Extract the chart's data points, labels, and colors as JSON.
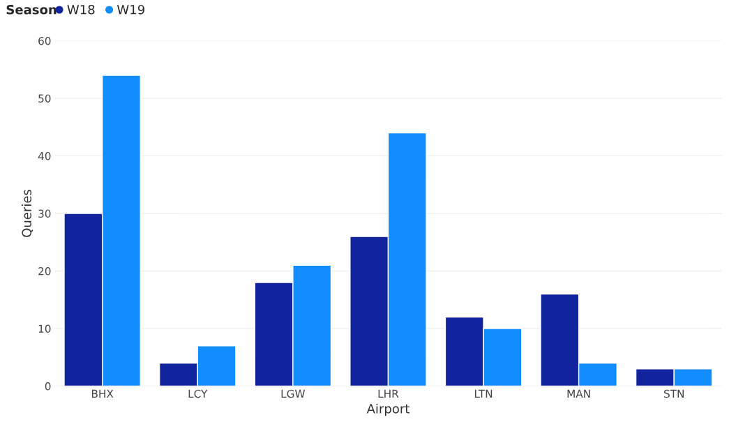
{
  "chart_data": {
    "type": "bar",
    "xlabel": "Airport",
    "ylabel": "Queries",
    "legend_title": "Season",
    "categories": [
      "BHX",
      "LCY",
      "LGW",
      "LHR",
      "LTN",
      "MAN",
      "STN"
    ],
    "series": [
      {
        "name": "W18",
        "color": "#12239e",
        "values": [
          30,
          4,
          18,
          26,
          12,
          16,
          3
        ]
      },
      {
        "name": "W19",
        "color": "#118dff",
        "values": [
          54,
          7,
          21,
          44,
          10,
          4,
          3
        ]
      }
    ],
    "ylim": [
      0,
      60
    ],
    "yticks": [
      0,
      10,
      20,
      30,
      40,
      50,
      60
    ],
    "grid": "y",
    "legend": "top left",
    "marker": "circle"
  }
}
